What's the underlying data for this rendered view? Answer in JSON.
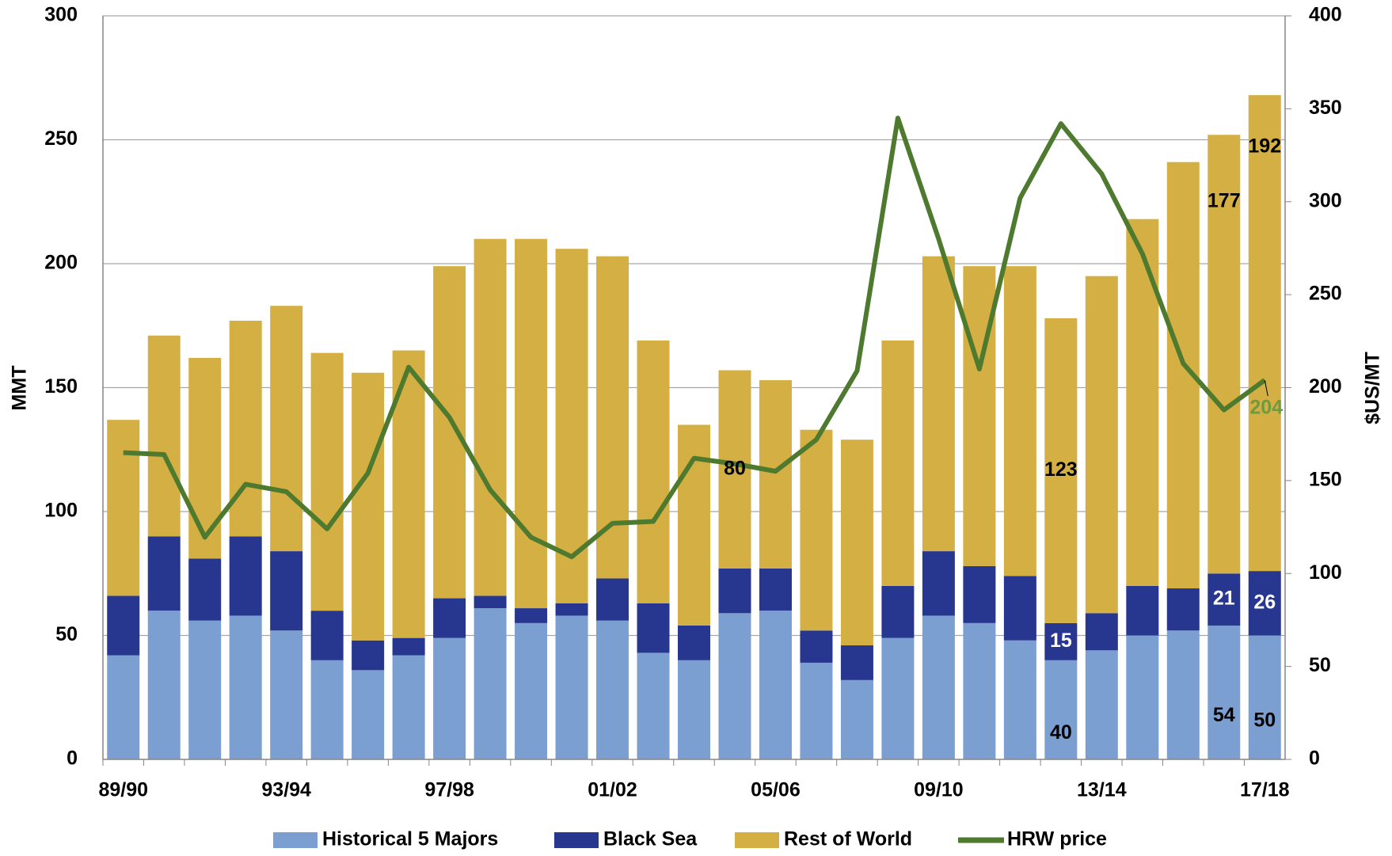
{
  "chart_data": {
    "type": "bar",
    "y_label": "MMT",
    "y2_label": "$US/MT",
    "categories": [
      "89/90",
      null,
      null,
      null,
      "93/94",
      null,
      null,
      null,
      "97/98",
      null,
      null,
      null,
      "01/02",
      null,
      null,
      null,
      "05/06",
      null,
      null,
      null,
      "09/10",
      null,
      null,
      null,
      "13/14",
      null,
      null,
      null,
      "17/18"
    ],
    "stacked": true,
    "series": [
      {
        "name": "Historical 5 Majors",
        "color": "#7b9fd1",
        "values": [
          42,
          60,
          56,
          58,
          52,
          40,
          36,
          42,
          49,
          61,
          55,
          58,
          56,
          43,
          40,
          59,
          60,
          39,
          32,
          49,
          58,
          55,
          48,
          40,
          44,
          50,
          52,
          54,
          50
        ]
      },
      {
        "name": "Black Sea",
        "color": "#27378f",
        "values": [
          24,
          30,
          25,
          32,
          32,
          20,
          12,
          7,
          16,
          5,
          6,
          5,
          17,
          20,
          14,
          18,
          17,
          13,
          14,
          21,
          26,
          23,
          26,
          15,
          15,
          20,
          17,
          21,
          26
        ]
      },
      {
        "name": "Rest of World",
        "color": "#d4af43",
        "values": [
          71,
          81,
          81,
          87,
          99,
          104,
          108,
          116,
          134,
          144,
          149,
          143,
          130,
          106,
          81,
          80,
          76,
          81,
          83,
          99,
          119,
          121,
          125,
          123,
          136,
          148,
          172,
          177,
          192
        ]
      },
      {
        "name": "HRW price",
        "color": "#4e7a2f",
        "type": "line",
        "axis": "y2",
        "values": [
          165,
          164,
          119.5,
          148,
          144,
          124,
          154,
          211,
          184,
          145,
          119.5,
          109,
          127,
          128,
          162,
          159,
          155,
          172,
          209,
          345,
          280,
          210,
          302,
          342,
          315,
          272,
          213,
          188,
          204
        ]
      }
    ],
    "ylim": [
      0,
      300
    ],
    "yticks": [
      0,
      50,
      100,
      150,
      200,
      250,
      300
    ],
    "y2lim": [
      0,
      400
    ],
    "y2ticks": [
      0,
      50,
      100,
      150,
      200,
      250,
      300,
      350,
      400
    ],
    "grid": true,
    "legend": "bottom"
  }
}
